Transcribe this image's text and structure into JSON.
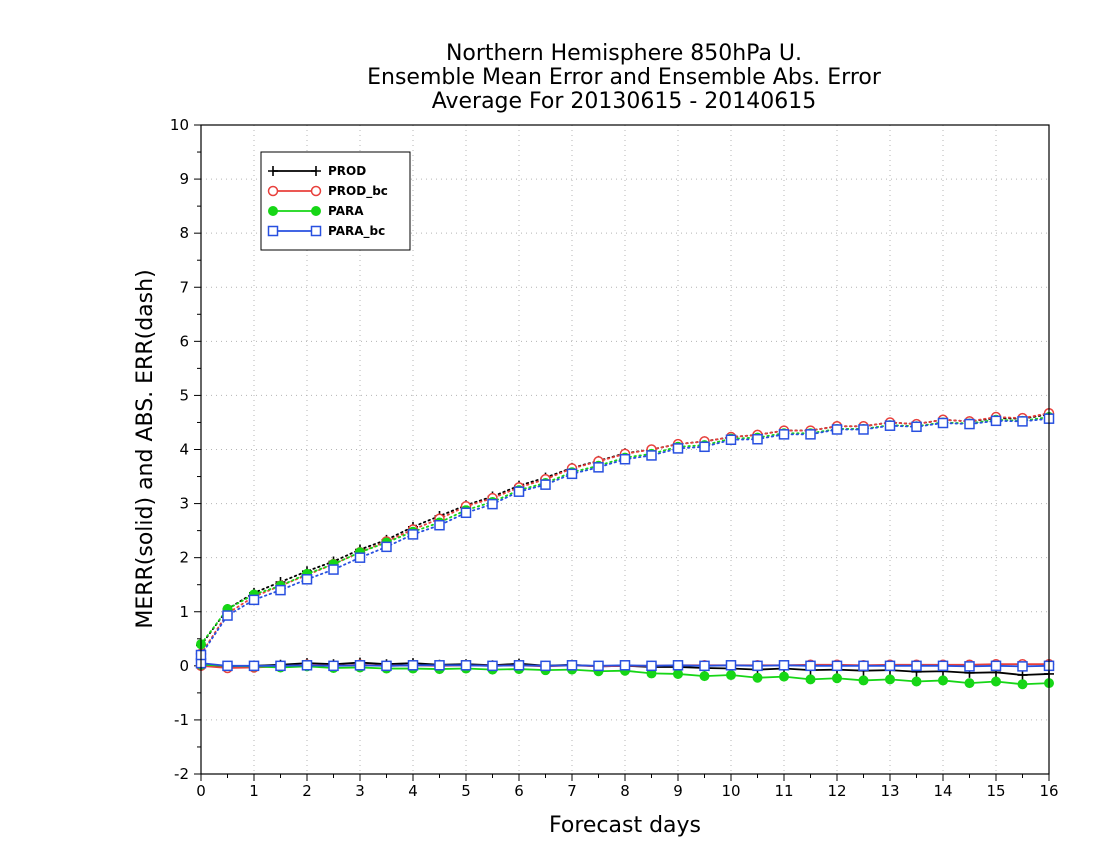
{
  "chart_data": {
    "type": "line",
    "title": [
      "Northern Hemisphere 850hPa U.",
      "Ensemble Mean Error and Ensemble Abs. Error",
      "Average For 20130615 - 20140615"
    ],
    "xlabel": "Forecast days",
    "ylabel": "MERR(solid) and ABS. ERR(dash)",
    "xlim": [
      0,
      16
    ],
    "ylim": [
      -2,
      10
    ],
    "x_ticks": [
      "0",
      "1",
      "2",
      "3",
      "4",
      "5",
      "6",
      "7",
      "8",
      "9",
      "10",
      "11",
      "12",
      "13",
      "14",
      "15",
      "16"
    ],
    "y_ticks": [
      "-2",
      "-1",
      "0",
      "1",
      "2",
      "3",
      "4",
      "5",
      "6",
      "7",
      "8",
      "9",
      "10"
    ],
    "grid": true,
    "legend_position": "top-left",
    "x": [
      0,
      0.5,
      1,
      1.5,
      2,
      2.5,
      3,
      3.5,
      4,
      4.5,
      5,
      5.5,
      6,
      6.5,
      7,
      7.5,
      8,
      8.5,
      9,
      9.5,
      10,
      10.5,
      11,
      11.5,
      12,
      12.5,
      13,
      13.5,
      14,
      14.5,
      15,
      15.5,
      16
    ],
    "series": [
      {
        "name": "PROD",
        "color": "#000000",
        "marker": "plus",
        "merr": [
          0.03,
          -0.02,
          0.0,
          0.02,
          0.05,
          0.03,
          0.06,
          0.03,
          0.05,
          0.02,
          0.03,
          0.01,
          0.04,
          0.0,
          0.02,
          -0.01,
          0.0,
          -0.02,
          -0.02,
          -0.04,
          -0.05,
          -0.07,
          -0.05,
          -0.08,
          -0.07,
          -0.09,
          -0.08,
          -0.11,
          -0.1,
          -0.13,
          -0.12,
          -0.17,
          -0.15
        ],
        "abs_err": [
          0.38,
          1.05,
          1.35,
          1.55,
          1.75,
          1.93,
          2.15,
          2.33,
          2.57,
          2.77,
          2.97,
          3.13,
          3.33,
          3.48,
          3.66,
          3.79,
          3.93,
          4.0,
          4.1,
          4.15,
          4.23,
          4.27,
          4.35,
          4.35,
          4.43,
          4.43,
          4.5,
          4.47,
          4.55,
          4.52,
          4.58,
          4.57,
          4.65
        ]
      },
      {
        "name": "PROD_bc",
        "color": "#e8403c",
        "marker": "open-circle",
        "merr": [
          0.0,
          -0.04,
          -0.03,
          -0.01,
          0.02,
          0.0,
          0.02,
          0.0,
          0.01,
          0.0,
          0.01,
          0.0,
          0.01,
          -0.01,
          0.01,
          -0.01,
          0.0,
          0.0,
          0.01,
          0.01,
          0.01,
          0.01,
          0.01,
          0.02,
          0.02,
          0.01,
          0.02,
          0.02,
          0.02,
          0.02,
          0.03,
          0.03,
          0.03
        ],
        "abs_err": [
          0.22,
          0.97,
          1.28,
          1.48,
          1.68,
          1.88,
          2.1,
          2.3,
          2.52,
          2.72,
          2.95,
          3.1,
          3.3,
          3.45,
          3.65,
          3.78,
          3.92,
          4.0,
          4.1,
          4.15,
          4.23,
          4.27,
          4.35,
          4.35,
          4.43,
          4.43,
          4.5,
          4.47,
          4.55,
          4.52,
          4.6,
          4.58,
          4.67
        ]
      },
      {
        "name": "PARA",
        "color": "#16d616",
        "marker": "filled-circle",
        "merr": [
          0.02,
          0.0,
          -0.01,
          -0.03,
          -0.01,
          -0.04,
          -0.03,
          -0.05,
          -0.05,
          -0.06,
          -0.05,
          -0.07,
          -0.06,
          -0.08,
          -0.07,
          -0.1,
          -0.09,
          -0.14,
          -0.15,
          -0.19,
          -0.17,
          -0.22,
          -0.2,
          -0.25,
          -0.23,
          -0.27,
          -0.25,
          -0.29,
          -0.27,
          -0.32,
          -0.29,
          -0.34,
          -0.32
        ],
        "abs_err": [
          0.4,
          1.05,
          1.32,
          1.48,
          1.7,
          1.88,
          2.1,
          2.28,
          2.48,
          2.65,
          2.88,
          3.03,
          3.25,
          3.38,
          3.58,
          3.7,
          3.85,
          3.92,
          4.05,
          4.08,
          4.2,
          4.22,
          4.3,
          4.3,
          4.38,
          4.38,
          4.45,
          4.43,
          4.5,
          4.48,
          4.55,
          4.53,
          4.6
        ]
      },
      {
        "name": "PARA_bc",
        "color": "#2850e0",
        "marker": "open-square",
        "merr": [
          0.05,
          0.0,
          0.0,
          0.0,
          0.01,
          0.0,
          0.01,
          0.0,
          0.01,
          0.01,
          0.01,
          0.0,
          0.01,
          0.0,
          0.01,
          0.0,
          0.01,
          0.0,
          0.01,
          0.0,
          0.01,
          0.0,
          0.01,
          0.0,
          0.0,
          0.0,
          0.0,
          0.0,
          0.0,
          -0.01,
          0.0,
          -0.01,
          0.0
        ],
        "abs_err": [
          0.2,
          0.93,
          1.22,
          1.4,
          1.6,
          1.78,
          2.0,
          2.2,
          2.43,
          2.6,
          2.83,
          2.99,
          3.22,
          3.35,
          3.55,
          3.67,
          3.82,
          3.89,
          4.02,
          4.05,
          4.18,
          4.19,
          4.28,
          4.28,
          4.37,
          4.37,
          4.44,
          4.42,
          4.49,
          4.47,
          4.53,
          4.52,
          4.57
        ]
      }
    ]
  }
}
